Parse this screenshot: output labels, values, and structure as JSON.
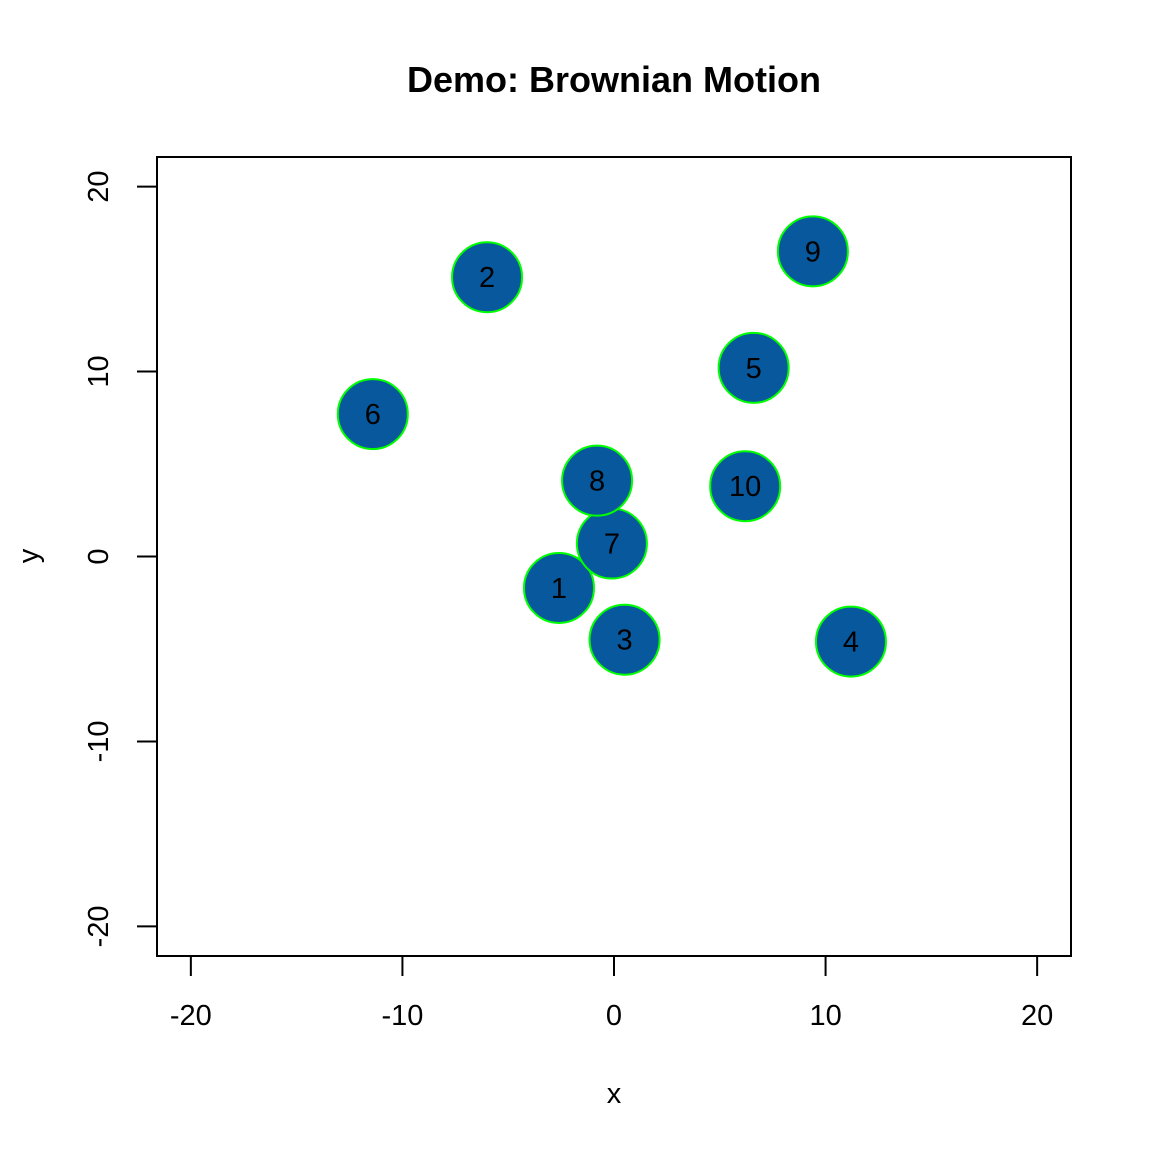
{
  "chart_data": {
    "type": "scatter",
    "title": "Demo: Brownian Motion",
    "xlabel": "x",
    "ylabel": "y",
    "xlim": [
      -21.6,
      21.6
    ],
    "ylim": [
      -21.6,
      21.6
    ],
    "xticks": [
      -20,
      -10,
      0,
      10,
      20
    ],
    "yticks": [
      -20,
      -10,
      0,
      10,
      20
    ],
    "grid": false,
    "marker_fill": "#08589e",
    "marker_edge": "#00ff00",
    "points": [
      {
        "label": "1",
        "x": -2.6,
        "y": -1.7
      },
      {
        "label": "2",
        "x": -6.0,
        "y": 15.1
      },
      {
        "label": "3",
        "x": 0.5,
        "y": -4.5
      },
      {
        "label": "4",
        "x": 11.2,
        "y": -4.6
      },
      {
        "label": "5",
        "x": 6.6,
        "y": 10.2
      },
      {
        "label": "6",
        "x": -11.4,
        "y": 7.7
      },
      {
        "label": "7",
        "x": -0.1,
        "y": 0.7
      },
      {
        "label": "8",
        "x": -0.8,
        "y": 4.1
      },
      {
        "label": "9",
        "x": 9.4,
        "y": 16.5
      },
      {
        "label": "10",
        "x": 6.2,
        "y": 3.8
      }
    ]
  }
}
